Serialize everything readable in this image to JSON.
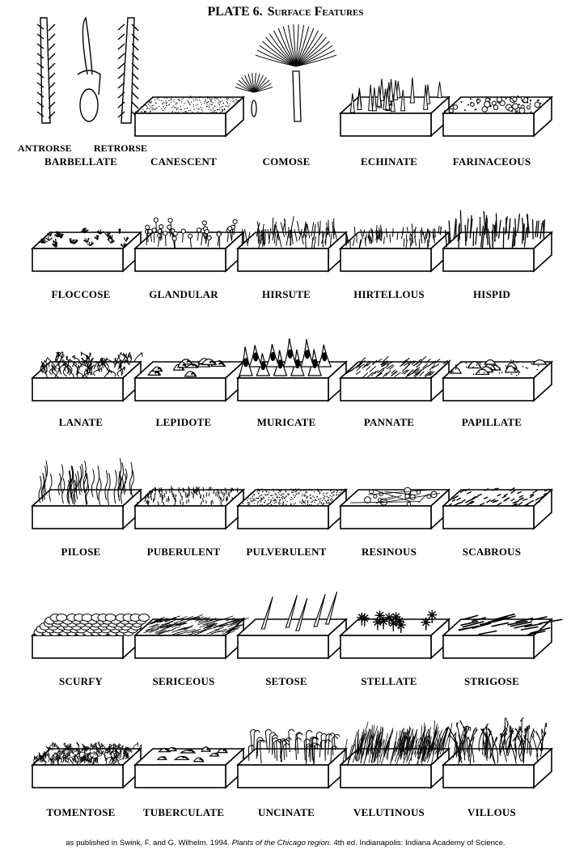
{
  "title": {
    "plate": "PLATE 6.",
    "subtitle": "Surface Features"
  },
  "features": [
    {
      "name": "BARBELLATE",
      "kind": "barbellate",
      "sublabels": [
        "ANTRORSE",
        "RETRORSE"
      ]
    },
    {
      "name": "CANESCENT",
      "kind": "canescent"
    },
    {
      "name": "COMOSE",
      "kind": "comose"
    },
    {
      "name": "ECHINATE",
      "kind": "echinate"
    },
    {
      "name": "FARINACEOUS",
      "kind": "farinaceous"
    },
    {
      "name": "FLOCCOSE",
      "kind": "floccose"
    },
    {
      "name": "GLANDULAR",
      "kind": "glandular"
    },
    {
      "name": "HIRSUTE",
      "kind": "hirsute"
    },
    {
      "name": "HIRTELLOUS",
      "kind": "hirtellous"
    },
    {
      "name": "HISPID",
      "kind": "hispid"
    },
    {
      "name": "LANATE",
      "kind": "lanate"
    },
    {
      "name": "LEPIDOTE",
      "kind": "lepidote"
    },
    {
      "name": "MURICATE",
      "kind": "muricate"
    },
    {
      "name": "PANNATE",
      "kind": "pannate"
    },
    {
      "name": "PAPILLATE",
      "kind": "papillate"
    },
    {
      "name": "PILOSE",
      "kind": "pilose"
    },
    {
      "name": "PUBERULENT",
      "kind": "puberulent"
    },
    {
      "name": "PULVERULENT",
      "kind": "pulverulent"
    },
    {
      "name": "RESINOUS",
      "kind": "resinous"
    },
    {
      "name": "SCABROUS",
      "kind": "scabrous"
    },
    {
      "name": "SCURFY",
      "kind": "scurfy"
    },
    {
      "name": "SERICEOUS",
      "kind": "sericeous"
    },
    {
      "name": "SETOSE",
      "kind": "setose"
    },
    {
      "name": "STELLATE",
      "kind": "stellate"
    },
    {
      "name": "STRIGOSE",
      "kind": "strigose"
    },
    {
      "name": "TOMENTOSE",
      "kind": "tomentose"
    },
    {
      "name": "TUBERCULATE",
      "kind": "tuberculate"
    },
    {
      "name": "UNCINATE",
      "kind": "uncinate"
    },
    {
      "name": "VELUTINOUS",
      "kind": "velutinous"
    },
    {
      "name": "VILLOUS",
      "kind": "villous"
    }
  ],
  "caption": {
    "prefix": "as published in Swink, F. and G. Wilhelm. 1994.",
    "book": "Plants of the Chicago region.",
    "suffix": "4th ed. Indianapolis: Indiana Academy of Science."
  }
}
